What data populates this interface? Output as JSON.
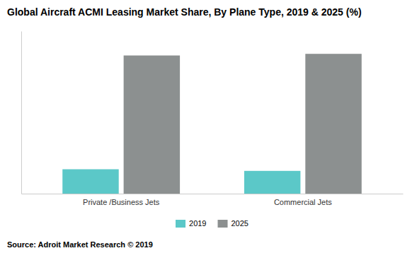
{
  "chart_data": {
    "type": "bar",
    "title": "Global Aircraft ACMI Leasing Market Share, By Plane Type, 2019 & 2025 (%)",
    "categories": [
      "Private /Business Jets",
      "Commercial Jets"
    ],
    "series": [
      {
        "name": "2019",
        "color": "#5bc8c8",
        "values": [
          15,
          14
        ]
      },
      {
        "name": "2025",
        "color": "#8c9090",
        "values": [
          85,
          86
        ]
      }
    ],
    "ylim": [
      0,
      100
    ],
    "tick_labels": "x",
    "grid": false,
    "legend": "bottom",
    "annotations": [
      "Source: Adroit Market Research © 2019"
    ]
  }
}
